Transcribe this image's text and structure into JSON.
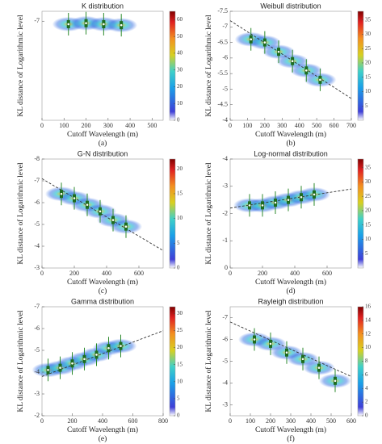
{
  "chart_data": [
    {
      "type": "scatter",
      "title": "K distribution",
      "xlabel": "Cutoff Wavelength (m)",
      "ylabel": "KL distance of Logarithmic level",
      "caption": "(a)",
      "xlim": [
        0,
        550
      ],
      "xticks": [
        0,
        100,
        200,
        300,
        400,
        500
      ],
      "ylim": [
        -2,
        -7.5
      ],
      "yticks": [
        -7
      ],
      "x": [
        120,
        200,
        280,
        360
      ],
      "values": [
        -6.85,
        -6.9,
        -6.85,
        -6.8
      ],
      "colorbar": {
        "lim": [
          0,
          65
        ],
        "ticks": [
          0,
          10,
          20,
          30,
          40,
          50,
          60
        ]
      }
    },
    {
      "type": "scatter",
      "title": "Weibull distribution",
      "xlabel": "Cutoff Wavelength (m)",
      "ylabel": "KL distance of Logarithmic level",
      "caption": "(b)",
      "xlim": [
        0,
        700
      ],
      "xticks": [
        0,
        100,
        200,
        300,
        400,
        500,
        600,
        700
      ],
      "ylim": [
        -4,
        -7.5
      ],
      "yticks": [
        -4,
        -4.5,
        -5,
        -5.5,
        -6,
        -6.5,
        -7,
        -7.5
      ],
      "x": [
        120,
        200,
        280,
        360,
        440,
        520
      ],
      "values": [
        -6.6,
        -6.5,
        -6.2,
        -5.9,
        -5.6,
        -5.3
      ],
      "fit": {
        "x": [
          0,
          700
        ],
        "values": [
          -7.2,
          -4.7
        ]
      },
      "colorbar": {
        "lim": [
          0,
          38
        ],
        "ticks": [
          5,
          10,
          15,
          20,
          25,
          30,
          35
        ]
      }
    },
    {
      "type": "scatter",
      "title": "G-N distribution",
      "xlabel": "Cutoff Wavelength (m)",
      "ylabel": "KL distance of Logarithmic level",
      "caption": "(c)",
      "xlim": [
        0,
        750
      ],
      "xticks": [
        0,
        200,
        400,
        600
      ],
      "ylim": [
        -3,
        -8
      ],
      "yticks": [
        -3,
        -4,
        -5,
        -6,
        -7,
        -8
      ],
      "x": [
        120,
        200,
        280,
        360,
        440,
        520
      ],
      "values": [
        -6.4,
        -6.2,
        -5.9,
        -5.6,
        -5.2,
        -4.9
      ],
      "fit": {
        "x": [
          0,
          750
        ],
        "values": [
          -7.1,
          -3.8
        ]
      },
      "colorbar": {
        "lim": [
          0,
          22
        ],
        "ticks": [
          0,
          5,
          10,
          15,
          20
        ]
      }
    },
    {
      "type": "scatter",
      "title": "Log-normal distribution",
      "xlabel": "Cutoff Wavelength (m)",
      "ylabel": "KL distance of Logarithmic level",
      "caption": "(d)",
      "xlim": [
        0,
        750
      ],
      "xticks": [
        0,
        200,
        400,
        600
      ],
      "ylim": [
        0,
        -4
      ],
      "yticks": [
        0,
        -1,
        -2,
        -3,
        -4
      ],
      "x": [
        120,
        200,
        280,
        360,
        440,
        520
      ],
      "values": [
        -2.3,
        -2.3,
        -2.4,
        -2.5,
        -2.6,
        -2.7
      ],
      "fit": {
        "x": [
          0,
          750
        ],
        "values": [
          -2.2,
          -2.9
        ]
      },
      "colorbar": {
        "lim": [
          0,
          38
        ],
        "ticks": [
          5,
          10,
          15,
          20,
          25,
          30,
          35
        ]
      }
    },
    {
      "type": "scatter",
      "title": "Gamma distribution",
      "xlabel": "Cutoff Wavelength (m)",
      "ylabel": "KL distance of Logarithmic level",
      "caption": "(e)",
      "xlim": [
        0,
        800
      ],
      "xticks": [
        0,
        200,
        400,
        600,
        800
      ],
      "ylim": [
        -2,
        -7
      ],
      "yticks": [
        -2,
        -3,
        -4,
        -5,
        -6,
        -7
      ],
      "x": [
        40,
        120,
        200,
        280,
        360,
        440,
        520
      ],
      "values": [
        -4.1,
        -4.2,
        -4.4,
        -4.6,
        -4.8,
        -5.1,
        -5.2
      ],
      "fit": {
        "x": [
          0,
          800
        ],
        "values": [
          -3.8,
          -5.9
        ]
      },
      "colorbar": {
        "lim": [
          0,
          32
        ],
        "ticks": [
          0,
          5,
          10,
          15,
          20,
          25,
          30
        ]
      }
    },
    {
      "type": "scatter",
      "title": "Rayleigh distribution",
      "xlabel": "Cutoff Wavelength (m)",
      "ylabel": "KL distance of Logarithmic level",
      "caption": "(f)",
      "xlim": [
        0,
        600
      ],
      "xticks": [
        0,
        100,
        200,
        300,
        400,
        500,
        600
      ],
      "ylim": [
        -2.5,
        -7.5
      ],
      "yticks": [
        -3,
        -4,
        -5,
        -6,
        -7
      ],
      "x": [
        120,
        200,
        280,
        360,
        440,
        520
      ],
      "values": [
        -6.0,
        -5.8,
        -5.4,
        -5.1,
        -4.7,
        -4.1
      ],
      "fit": {
        "x": [
          0,
          600
        ],
        "values": [
          -6.8,
          -4.3
        ]
      },
      "colorbar": {
        "lim": [
          0,
          16
        ],
        "ticks": [
          0,
          2,
          4,
          6,
          8,
          10,
          12,
          14,
          16
        ]
      }
    }
  ]
}
